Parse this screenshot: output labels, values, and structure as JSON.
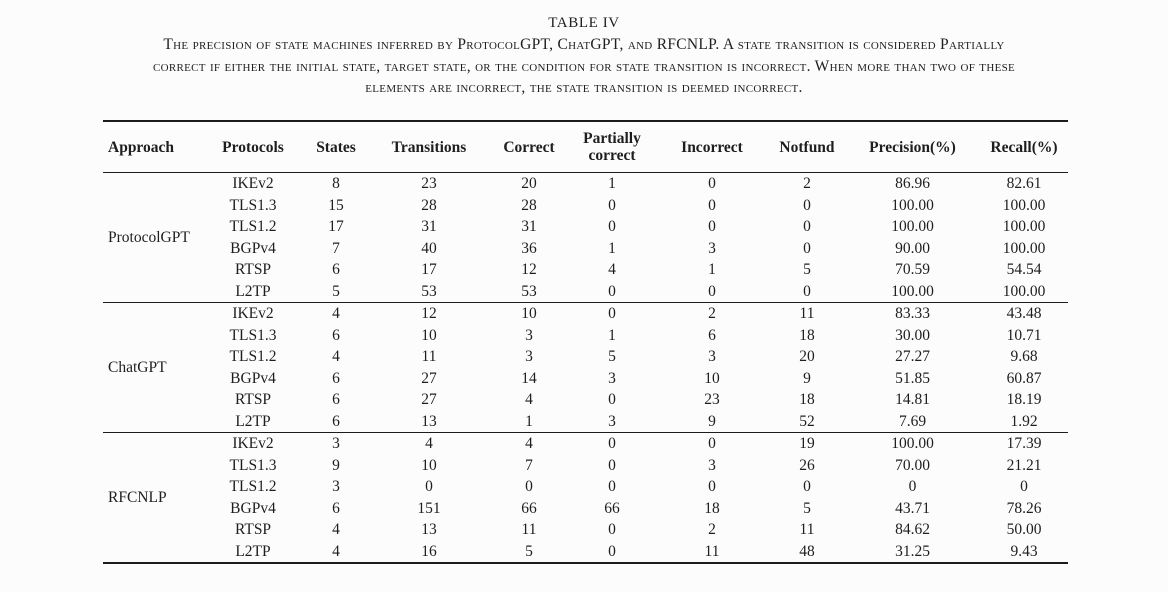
{
  "colors": {
    "ink": "#1e1e1e",
    "rule": "#1c1c1c",
    "background": "#fcfcfc"
  },
  "caption": {
    "title": "TABLE IV",
    "lines": [
      "The precision of state machines inferred by ProtocolGPT, ChatGPT, and RFCNLP. A state transition is considered Partially",
      "correct if either the initial state, target state, or the condition for state transition is incorrect. When more than two of these",
      "elements are incorrect, the state transition is deemed incorrect."
    ]
  },
  "table": {
    "columns": [
      "Approach",
      "Protocols",
      "States",
      "Transitions",
      "Correct",
      "Partially correct",
      "Incorrect",
      "Notfund",
      "Precision(%)",
      "Recall(%)"
    ],
    "groups": [
      {
        "approach": "ProtocolGPT",
        "rows": [
          [
            "IKEv2",
            "8",
            "23",
            "20",
            "1",
            "0",
            "2",
            "86.96",
            "82.61"
          ],
          [
            "TLS1.3",
            "15",
            "28",
            "28",
            "0",
            "0",
            "0",
            "100.00",
            "100.00"
          ],
          [
            "TLS1.2",
            "17",
            "31",
            "31",
            "0",
            "0",
            "0",
            "100.00",
            "100.00"
          ],
          [
            "BGPv4",
            "7",
            "40",
            "36",
            "1",
            "3",
            "0",
            "90.00",
            "100.00"
          ],
          [
            "RTSP",
            "6",
            "17",
            "12",
            "4",
            "1",
            "5",
            "70.59",
            "54.54"
          ],
          [
            "L2TP",
            "5",
            "53",
            "53",
            "0",
            "0",
            "0",
            "100.00",
            "100.00"
          ]
        ]
      },
      {
        "approach": "ChatGPT",
        "rows": [
          [
            "IKEv2",
            "4",
            "12",
            "10",
            "0",
            "2",
            "11",
            "83.33",
            "43.48"
          ],
          [
            "TLS1.3",
            "6",
            "10",
            "3",
            "1",
            "6",
            "18",
            "30.00",
            "10.71"
          ],
          [
            "TLS1.2",
            "4",
            "11",
            "3",
            "5",
            "3",
            "20",
            "27.27",
            "9.68"
          ],
          [
            "BGPv4",
            "6",
            "27",
            "14",
            "3",
            "10",
            "9",
            "51.85",
            "60.87"
          ],
          [
            "RTSP",
            "6",
            "27",
            "4",
            "0",
            "23",
            "18",
            "14.81",
            "18.19"
          ],
          [
            "L2TP",
            "6",
            "13",
            "1",
            "3",
            "9",
            "52",
            "7.69",
            "1.92"
          ]
        ]
      },
      {
        "approach": "RFCNLP",
        "rows": [
          [
            "IKEv2",
            "3",
            "4",
            "4",
            "0",
            "0",
            "19",
            "100.00",
            "17.39"
          ],
          [
            "TLS1.3",
            "9",
            "10",
            "7",
            "0",
            "3",
            "26",
            "70.00",
            "21.21"
          ],
          [
            "TLS1.2",
            "3",
            "0",
            "0",
            "0",
            "0",
            "0",
            "0",
            "0"
          ],
          [
            "BGPv4",
            "6",
            "151",
            "66",
            "66",
            "18",
            "5",
            "43.71",
            "78.26"
          ],
          [
            "RTSP",
            "4",
            "13",
            "11",
            "0",
            "2",
            "11",
            "84.62",
            "50.00"
          ],
          [
            "L2TP",
            "4",
            "16",
            "5",
            "0",
            "11",
            "48",
            "31.25",
            "9.43"
          ]
        ]
      }
    ]
  }
}
